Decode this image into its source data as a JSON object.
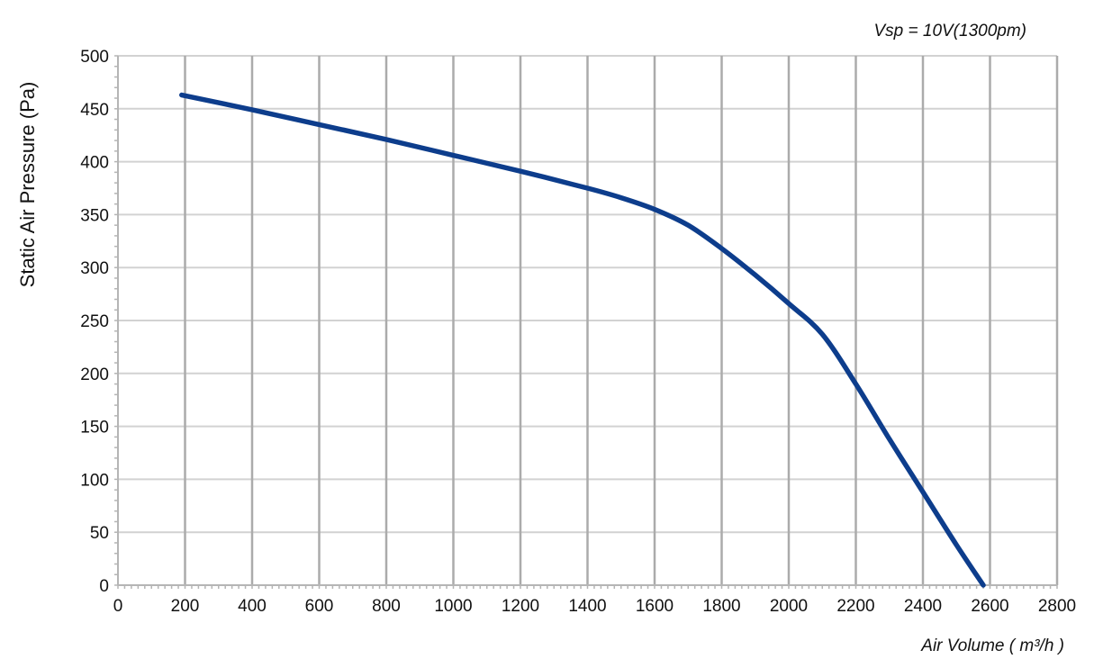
{
  "chart_data": {
    "type": "line",
    "annotation": "Vsp = 10V(1300pm)",
    "xlabel": "Air Volume ( m³/h )",
    "ylabel": "Static Air Pressure  (Pa)",
    "xlim": [
      0,
      2800
    ],
    "ylim": [
      0,
      500
    ],
    "x_ticks": [
      "0",
      "200",
      "400",
      "600",
      "800",
      "1000",
      "1200",
      "1400",
      "1600",
      "1800",
      "2000",
      "2200",
      "2400",
      "2600",
      "2800"
    ],
    "y_ticks": [
      "0",
      "50",
      "100",
      "150",
      "200",
      "250",
      "300",
      "350",
      "400",
      "450",
      "500"
    ],
    "grid": true,
    "series": [
      {
        "color": "#0d3d8c",
        "x": [
          190,
          400,
          600,
          800,
          1000,
          1200,
          1400,
          1500,
          1600,
          1700,
          1800,
          1900,
          2000,
          2100,
          2200,
          2300,
          2400,
          2500,
          2580
        ],
        "y": [
          463,
          449,
          435,
          421,
          406,
          391,
          375,
          366,
          355,
          340,
          318,
          293,
          266,
          237,
          190,
          138,
          88,
          38,
          0
        ]
      }
    ]
  }
}
